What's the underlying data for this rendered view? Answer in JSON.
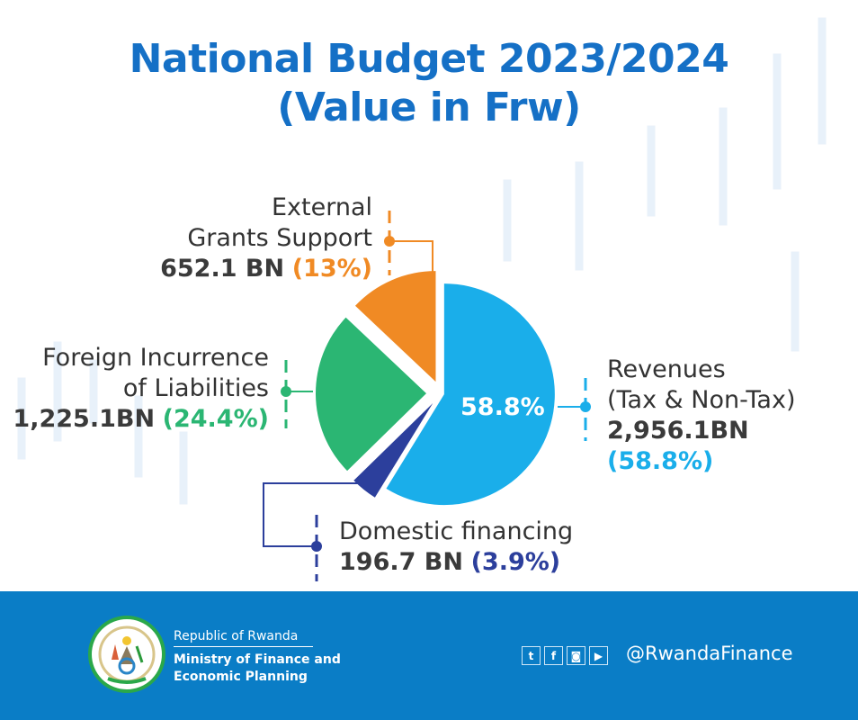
{
  "title_line1": "National Budget 2023/2024",
  "title_line2": "(Value in Frw)",
  "chart_data": {
    "type": "pie",
    "title": "National Budget 2023/2024 (Value in Frw)",
    "center_label": "58.8%",
    "slices": [
      {
        "name_line1": "Revenues",
        "name_line2": "(Tax & Non-Tax)",
        "value_text": "2,956.1BN",
        "pct_text": "(58.8%)",
        "value": 2956.1,
        "percent": 58.8,
        "color": "#1aaeea"
      },
      {
        "name_line1": "Domestic financing",
        "name_line2": "",
        "value_text": "196.7 BN",
        "pct_text": "(3.9%)",
        "value": 196.7,
        "percent": 3.9,
        "color": "#2c3f9c"
      },
      {
        "name_line1": "Foreign Incurrence",
        "name_line2": "of Liabilities",
        "value_text": "1,225.1BN",
        "pct_text": "(24.4%)",
        "value": 1225.1,
        "percent": 24.4,
        "color": "#2bb673"
      },
      {
        "name_line1": "External",
        "name_line2": "Grants Support",
        "value_text": "652.1 BN",
        "pct_text": "(13%)",
        "value": 652.1,
        "percent": 13,
        "color": "#f08a24"
      }
    ]
  },
  "footer": {
    "republic": "Republic of Rwanda",
    "ministry_line1": "Ministry of Finance and",
    "ministry_line2": "Economic Planning",
    "emblem_text": "REPUBULIKA Y'U RWANDA - UBUMWE - UMURIMO - GUKUNDA IGIHUGU",
    "social_icons": [
      "twitter-icon",
      "facebook-icon",
      "instagram-icon",
      "youtube-icon"
    ],
    "handle": "@RwandaFinance"
  }
}
